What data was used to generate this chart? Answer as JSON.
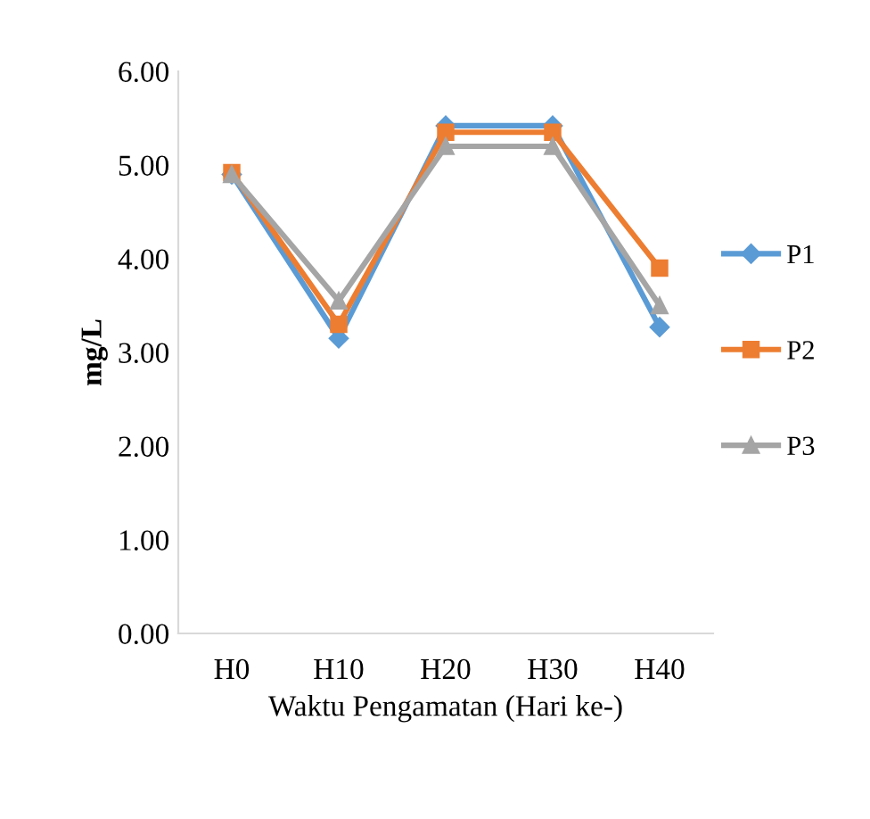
{
  "chart_data": {
    "type": "line",
    "xlabel": "Waktu Pengamatan (Hari ke-)",
    "ylabel": "mg/L",
    "categories": [
      "H0",
      "H10",
      "H20",
      "H30",
      "H40"
    ],
    "series": [
      {
        "name": "P1",
        "color": "#5b9bd5",
        "marker": "diamond",
        "values": [
          4.9,
          3.15,
          5.42,
          5.42,
          3.27
        ]
      },
      {
        "name": "P2",
        "color": "#ed7d31",
        "marker": "square",
        "values": [
          4.92,
          3.3,
          5.35,
          5.35,
          3.9
        ]
      },
      {
        "name": "P3",
        "color": "#a5a5a5",
        "marker": "triangle",
        "values": [
          4.9,
          3.55,
          5.2,
          5.2,
          3.5
        ]
      }
    ],
    "ylim": [
      0,
      6
    ],
    "yticks": [
      {
        "value": 0,
        "label": "0.00"
      },
      {
        "value": 1,
        "label": "1.00"
      },
      {
        "value": 2,
        "label": "2.00"
      },
      {
        "value": 3,
        "label": "3.00"
      },
      {
        "value": 4,
        "label": "4.00"
      },
      {
        "value": 5,
        "label": "5.00"
      },
      {
        "value": 6,
        "label": "6.00"
      }
    ],
    "grid": false,
    "legend": "right"
  }
}
